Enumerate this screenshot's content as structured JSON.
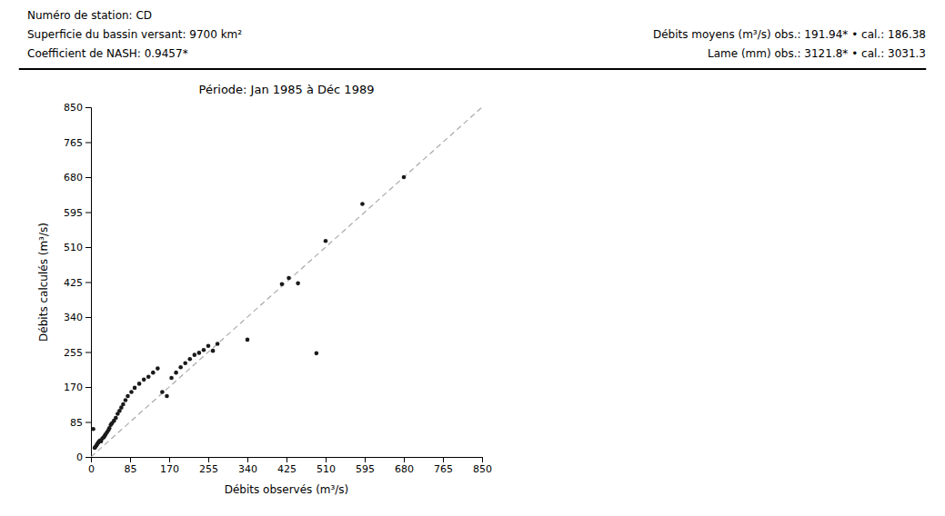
{
  "chart_data": {
    "type": "scatter",
    "title": "Période: Jan 1985 à Déc 1989",
    "annotations": [
      "Numéro de station:  CD",
      "Superficie du bassin versant: 9700 km²",
      "Coefficient de NASH: 0.9457*",
      "Débits moyens (m³/s) obs.: 191.94* • cal.: 186.38",
      "Lame (mm)  obs.: 3121.8* • cal.: 3031.3"
    ],
    "x_label": "Débits observés (m³/s)",
    "y_label": "Débits calculés (m³/s)",
    "xlim": [
      0,
      850
    ],
    "ylim": [
      0,
      850
    ],
    "xticks": [
      0,
      85,
      170,
      255,
      340,
      425,
      510,
      595,
      680,
      765,
      850
    ],
    "yticks": [
      0,
      85,
      170,
      255,
      340,
      425,
      510,
      595,
      680,
      765,
      850
    ],
    "grid": false,
    "series": [
      {
        "type": "line",
        "line_style": "dashed",
        "color": "#aaaaaa",
        "x": [
          0,
          850
        ],
        "values": [
          0,
          850
        ]
      },
      {
        "type": "scatter",
        "marker": "circle",
        "color": "#1a1a1a",
        "x": [
          5,
          8,
          10,
          12,
          14,
          16,
          18,
          20,
          22,
          25,
          28,
          30,
          32,
          35,
          38,
          40,
          43,
          46,
          50,
          54,
          58,
          62,
          66,
          70,
          75,
          80,
          88,
          95,
          105,
          115,
          125,
          135,
          145,
          155,
          165,
          175,
          185,
          195,
          205,
          215,
          225,
          235,
          245,
          255,
          265,
          275,
          490,
          340,
          415,
          430,
          450,
          510,
          590,
          680
        ],
        "values": [
          68,
          22,
          25,
          28,
          32,
          35,
          38,
          40,
          38,
          45,
          48,
          52,
          55,
          60,
          65,
          70,
          78,
          82,
          88,
          95,
          105,
          112,
          120,
          128,
          138,
          148,
          158,
          168,
          178,
          188,
          195,
          205,
          215,
          158,
          148,
          192,
          205,
          218,
          228,
          238,
          248,
          253,
          260,
          270,
          258,
          275,
          252,
          285,
          420,
          435,
          422,
          525,
          615,
          680
        ]
      }
    ]
  }
}
